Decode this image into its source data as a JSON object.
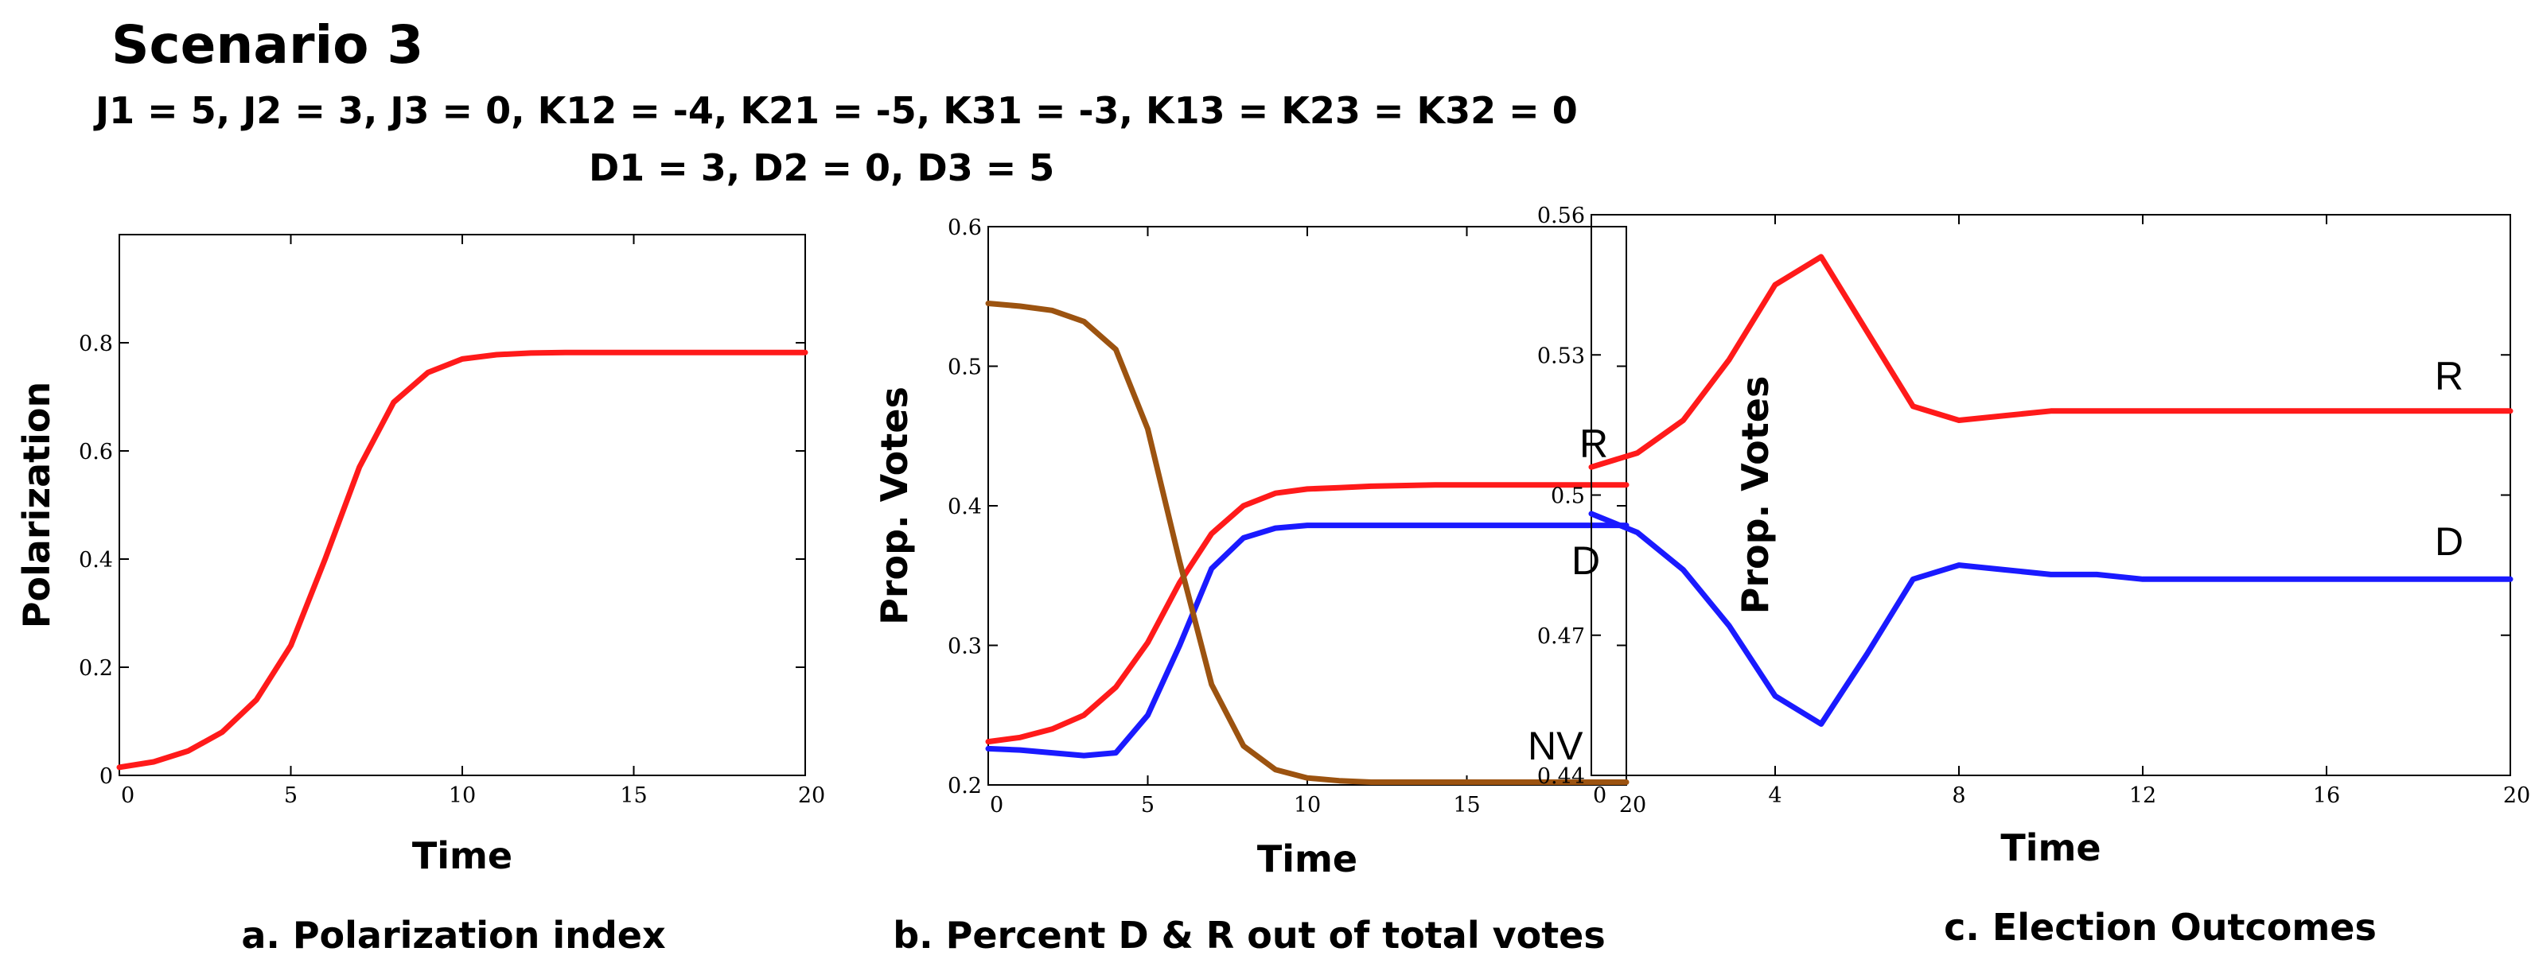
{
  "heading": "Scenario 3",
  "params_line1": "J1 = 5, J2 = 3, J3 = 0, K12 = -4, K21 = -5, K31 = -3, K13 = K23 = K32 = 0",
  "params_line2": "D1 = 3, D2 = 0, D3 = 5",
  "colors": {
    "red": "#ff1a1a",
    "blue": "#1a1aff",
    "brown": "#9c5310"
  },
  "chart_data": [
    {
      "type": "line",
      "caption": "a. Polarization index",
      "xlabel": "Time",
      "ylabel": "Polarization",
      "xlim": [
        0,
        20
      ],
      "ylim": [
        0,
        1
      ],
      "xticks": [
        0,
        5,
        10,
        15,
        20
      ],
      "xtick_labels": [
        "0",
        "5",
        "10",
        "15",
        "20"
      ],
      "yticks": [
        0,
        0.2,
        0.4,
        0.6,
        0.8
      ],
      "ytick_labels": [
        "0",
        "0.2",
        "0.4",
        "0.6",
        "0.8"
      ],
      "series": [
        {
          "name": "Polarization",
          "color": "#ff1a1a",
          "show_label": false,
          "x": [
            0,
            1,
            2,
            3,
            4,
            5,
            6,
            7,
            8,
            9,
            10,
            11,
            12,
            13,
            14,
            15,
            16,
            17,
            18,
            19,
            20
          ],
          "values": [
            0.015,
            0.025,
            0.045,
            0.08,
            0.14,
            0.24,
            0.4,
            0.57,
            0.69,
            0.745,
            0.77,
            0.778,
            0.781,
            0.782,
            0.782,
            0.782,
            0.782,
            0.782,
            0.782,
            0.782,
            0.782
          ]
        }
      ]
    },
    {
      "type": "line",
      "caption": "b. Percent D & R out of total votes",
      "xlabel": "Time",
      "ylabel": "Prop.  Votes",
      "xlim": [
        0,
        20
      ],
      "ylim": [
        0.2,
        0.6
      ],
      "xticks": [
        0,
        5,
        10,
        15,
        20
      ],
      "xtick_labels": [
        "0",
        "5",
        "10",
        "15",
        "20"
      ],
      "yticks": [
        0.2,
        0.3,
        0.4,
        0.5,
        0.6
      ],
      "ytick_labels": [
        "0.2",
        "0.3",
        "0.4",
        "0.5",
        "0.6"
      ],
      "series": [
        {
          "name": "R",
          "color": "#ff1a1a",
          "show_label": true,
          "x": [
            0,
            1,
            2,
            3,
            4,
            5,
            6,
            7,
            8,
            9,
            10,
            11,
            12,
            14,
            16,
            18,
            20
          ],
          "values": [
            0.231,
            0.234,
            0.24,
            0.25,
            0.27,
            0.302,
            0.345,
            0.38,
            0.4,
            0.409,
            0.412,
            0.413,
            0.414,
            0.415,
            0.415,
            0.415,
            0.415
          ]
        },
        {
          "name": "D",
          "color": "#1a1aff",
          "show_label": true,
          "x": [
            0,
            1,
            2,
            3,
            4,
            5,
            6,
            7,
            8,
            9,
            10,
            11,
            12,
            14,
            16,
            18,
            20
          ],
          "values": [
            0.226,
            0.225,
            0.223,
            0.221,
            0.223,
            0.25,
            0.3,
            0.355,
            0.377,
            0.384,
            0.386,
            0.386,
            0.386,
            0.386,
            0.386,
            0.386,
            0.386
          ]
        },
        {
          "name": "NV",
          "color": "#9c5310",
          "show_label": true,
          "x": [
            0,
            1,
            2,
            3,
            4,
            5,
            6,
            7,
            8,
            9,
            10,
            11,
            12,
            14,
            16,
            18,
            20
          ],
          "values": [
            0.545,
            0.543,
            0.54,
            0.532,
            0.512,
            0.455,
            0.36,
            0.272,
            0.228,
            0.211,
            0.205,
            0.203,
            0.202,
            0.202,
            0.202,
            0.202,
            0.202
          ]
        }
      ]
    },
    {
      "type": "line",
      "caption": "c. Election Outcomes",
      "xlabel": "Time",
      "ylabel": "Prop.  Votes",
      "xlim": [
        0,
        20
      ],
      "ylim": [
        0.44,
        0.56
      ],
      "xticks": [
        0,
        4,
        8,
        12,
        16,
        20
      ],
      "xtick_labels": [
        "0",
        "4",
        "8",
        "12",
        "16",
        "20"
      ],
      "yticks": [
        0.44,
        0.47,
        0.5,
        0.53,
        0.56
      ],
      "ytick_labels": [
        "0.44",
        "0.47",
        "0.5",
        "0.53",
        "0.56"
      ],
      "series": [
        {
          "name": "R",
          "color": "#ff1a1a",
          "show_label": true,
          "x": [
            0,
            1,
            2,
            3,
            4,
            5,
            6,
            7,
            8,
            9,
            10,
            11,
            12,
            14,
            16,
            18,
            20
          ],
          "values": [
            0.506,
            0.509,
            0.516,
            0.529,
            0.545,
            0.551,
            0.535,
            0.519,
            0.516,
            0.517,
            0.518,
            0.518,
            0.518,
            0.518,
            0.518,
            0.518,
            0.518
          ]
        },
        {
          "name": "D",
          "color": "#1a1aff",
          "show_label": true,
          "x": [
            0,
            1,
            2,
            3,
            4,
            5,
            6,
            7,
            8,
            9,
            10,
            11,
            12,
            14,
            16,
            18,
            20
          ],
          "values": [
            0.496,
            0.492,
            0.484,
            0.472,
            0.457,
            0.451,
            0.466,
            0.482,
            0.485,
            0.484,
            0.483,
            0.483,
            0.482,
            0.482,
            0.482,
            0.482,
            0.482
          ]
        }
      ]
    }
  ]
}
